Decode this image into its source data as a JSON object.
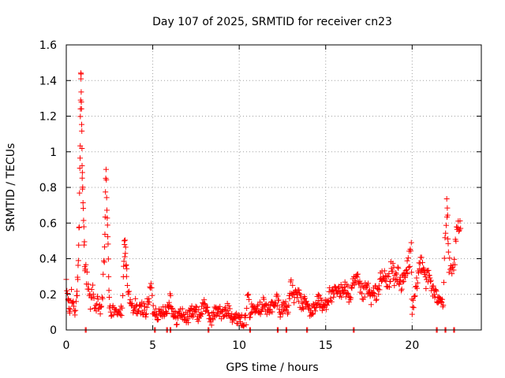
{
  "chart_data": {
    "type": "scatter",
    "title": "Day 107 of 2025, SRMTID for receiver cn23",
    "xlabel": "GPS time / hours",
    "ylabel": "SRMTID / TECUs",
    "xlim": [
      0,
      24
    ],
    "ylim": [
      0,
      1.6
    ],
    "xticks": [
      0,
      5,
      10,
      15,
      20
    ],
    "xtick_labels": [
      "0",
      "5",
      "10",
      "15",
      "20"
    ],
    "yticks": [
      0,
      0.2,
      0.4,
      0.6,
      0.8,
      1.0,
      1.2,
      1.4,
      1.6
    ],
    "ytick_labels": [
      "0",
      "0.2",
      "0.4",
      "0.6",
      "0.8",
      "1",
      "1.2",
      "1.4",
      "1.6"
    ],
    "grid": true,
    "marker": "plus",
    "color": "#ff0000",
    "series": [
      {
        "name": "cn23",
        "points": [
          [
            0.0,
            0.24
          ],
          [
            0.1,
            0.18
          ],
          [
            0.15,
            0.14
          ],
          [
            0.2,
            0.1
          ],
          [
            0.3,
            0.2
          ],
          [
            0.4,
            0.15
          ],
          [
            0.5,
            0.12
          ],
          [
            0.6,
            0.18
          ],
          [
            0.65,
            0.25
          ],
          [
            0.7,
            0.35
          ],
          [
            0.75,
            0.6
          ],
          [
            0.8,
            1.0
          ],
          [
            0.82,
            1.25
          ],
          [
            0.85,
            1.46
          ],
          [
            0.87,
            1.3
          ],
          [
            0.9,
            1.1
          ],
          [
            0.92,
            0.9
          ],
          [
            0.95,
            0.75
          ],
          [
            1.0,
            0.6
          ],
          [
            1.05,
            0.45
          ],
          [
            1.1,
            0.35
          ],
          [
            1.2,
            0.28
          ],
          [
            1.3,
            0.2
          ],
          [
            1.4,
            0.15
          ],
          [
            1.5,
            0.22
          ],
          [
            1.6,
            0.18
          ],
          [
            1.7,
            0.12
          ],
          [
            1.8,
            0.15
          ],
          [
            1.9,
            0.1
          ],
          [
            2.0,
            0.12
          ],
          [
            2.1,
            0.2
          ],
          [
            2.2,
            0.4
          ],
          [
            2.25,
            0.65
          ],
          [
            2.3,
            0.88
          ],
          [
            2.35,
            0.72
          ],
          [
            2.4,
            0.5
          ],
          [
            2.45,
            0.3
          ],
          [
            2.5,
            0.15
          ],
          [
            2.6,
            0.1
          ],
          [
            2.7,
            0.12
          ],
          [
            2.8,
            0.08
          ],
          [
            2.9,
            0.1
          ],
          [
            3.0,
            0.12
          ],
          [
            3.1,
            0.09
          ],
          [
            3.2,
            0.1
          ],
          [
            3.3,
            0.25
          ],
          [
            3.35,
            0.45
          ],
          [
            3.4,
            0.48
          ],
          [
            3.45,
            0.4
          ],
          [
            3.5,
            0.3
          ],
          [
            3.6,
            0.2
          ],
          [
            3.7,
            0.15
          ],
          [
            3.8,
            0.12
          ],
          [
            3.9,
            0.1
          ],
          [
            4.0,
            0.14
          ],
          [
            4.2,
            0.1
          ],
          [
            4.4,
            0.13
          ],
          [
            4.6,
            0.1
          ],
          [
            4.8,
            0.18
          ],
          [
            4.9,
            0.26
          ],
          [
            5.0,
            0.12
          ],
          [
            5.2,
            0.1
          ],
          [
            5.4,
            0.08
          ],
          [
            5.6,
            0.12
          ],
          [
            5.8,
            0.1
          ],
          [
            6.0,
            0.19
          ],
          [
            6.2,
            0.08
          ],
          [
            6.4,
            0.06
          ],
          [
            6.6,
            0.1
          ],
          [
            6.8,
            0.08
          ],
          [
            7.0,
            0.06
          ],
          [
            7.2,
            0.1
          ],
          [
            7.4,
            0.12
          ],
          [
            7.6,
            0.08
          ],
          [
            7.8,
            0.1
          ],
          [
            8.0,
            0.16
          ],
          [
            8.2,
            0.08
          ],
          [
            8.4,
            0.06
          ],
          [
            8.6,
            0.1
          ],
          [
            8.8,
            0.12
          ],
          [
            9.0,
            0.08
          ],
          [
            9.2,
            0.1
          ],
          [
            9.4,
            0.12
          ],
          [
            9.6,
            0.08
          ],
          [
            9.8,
            0.06
          ],
          [
            10.0,
            0.08
          ],
          [
            10.2,
            0.04
          ],
          [
            10.4,
            0.06
          ],
          [
            10.5,
            0.2
          ],
          [
            10.6,
            0.1
          ],
          [
            10.8,
            0.12
          ],
          [
            11.0,
            0.15
          ],
          [
            11.2,
            0.12
          ],
          [
            11.4,
            0.16
          ],
          [
            11.6,
            0.1
          ],
          [
            11.8,
            0.14
          ],
          [
            12.0,
            0.12
          ],
          [
            12.2,
            0.18
          ],
          [
            12.4,
            0.1
          ],
          [
            12.6,
            0.14
          ],
          [
            12.8,
            0.12
          ],
          [
            13.0,
            0.24
          ],
          [
            13.2,
            0.18
          ],
          [
            13.4,
            0.2
          ],
          [
            13.6,
            0.14
          ],
          [
            13.8,
            0.16
          ],
          [
            14.0,
            0.12
          ],
          [
            14.2,
            0.1
          ],
          [
            14.4,
            0.14
          ],
          [
            14.6,
            0.18
          ],
          [
            14.8,
            0.12
          ],
          [
            15.0,
            0.15
          ],
          [
            15.2,
            0.2
          ],
          [
            15.4,
            0.18
          ],
          [
            15.6,
            0.22
          ],
          [
            15.8,
            0.2
          ],
          [
            16.0,
            0.25
          ],
          [
            16.2,
            0.22
          ],
          [
            16.4,
            0.18
          ],
          [
            16.6,
            0.25
          ],
          [
            16.8,
            0.28
          ],
          [
            17.0,
            0.22
          ],
          [
            17.2,
            0.2
          ],
          [
            17.4,
            0.24
          ],
          [
            17.6,
            0.18
          ],
          [
            17.8,
            0.2
          ],
          [
            18.0,
            0.22
          ],
          [
            18.2,
            0.28
          ],
          [
            18.4,
            0.3
          ],
          [
            18.6,
            0.25
          ],
          [
            18.8,
            0.35
          ],
          [
            19.0,
            0.28
          ],
          [
            19.2,
            0.32
          ],
          [
            19.4,
            0.25
          ],
          [
            19.6,
            0.3
          ],
          [
            19.8,
            0.38
          ],
          [
            19.95,
            0.45
          ],
          [
            20.0,
            0.1
          ],
          [
            20.2,
            0.2
          ],
          [
            20.4,
            0.35
          ],
          [
            20.6,
            0.4
          ],
          [
            20.8,
            0.28
          ],
          [
            21.0,
            0.3
          ],
          [
            21.2,
            0.22
          ],
          [
            21.4,
            0.18
          ],
          [
            21.6,
            0.2
          ],
          [
            21.8,
            0.15
          ],
          [
            21.9,
            0.5
          ],
          [
            22.0,
            0.68
          ],
          [
            22.05,
            0.6
          ],
          [
            22.1,
            0.4
          ],
          [
            22.2,
            0.32
          ],
          [
            22.3,
            0.3
          ],
          [
            22.4,
            0.35
          ],
          [
            22.5,
            0.45
          ],
          [
            22.6,
            0.55
          ],
          [
            22.7,
            0.58
          ],
          [
            22.8,
            0.57
          ]
        ]
      }
    ],
    "zero_points_x": [
      1.1,
      5.1,
      5.8,
      6.0,
      8.2,
      10.6,
      12.2,
      12.7,
      13.9,
      16.6,
      21.4,
      21.9,
      22.4
    ]
  }
}
